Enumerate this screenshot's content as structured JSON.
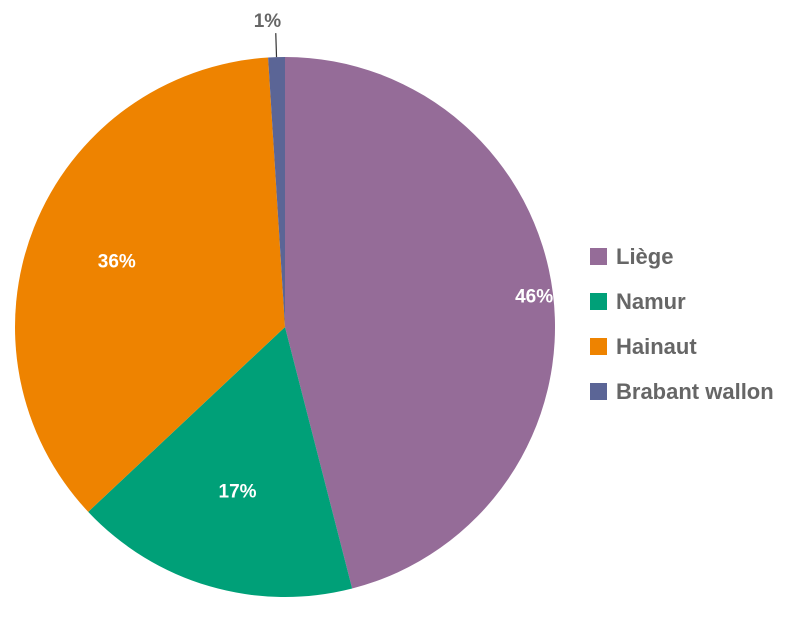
{
  "chart_data": {
    "type": "pie",
    "start": "12 o'clock",
    "direction": "clockwise",
    "legend_position": "right",
    "slices": [
      {
        "name": "Liège",
        "value": 46,
        "label": "46%",
        "color": "#956c98"
      },
      {
        "name": "Namur",
        "value": 17,
        "label": "17%",
        "color": "#00a078"
      },
      {
        "name": "Hainaut",
        "value": 36,
        "label": "36%",
        "color": "#ee8300"
      },
      {
        "name": "Brabant wallon",
        "value": 1,
        "label": "1%",
        "color": "#5b6596"
      }
    ]
  }
}
